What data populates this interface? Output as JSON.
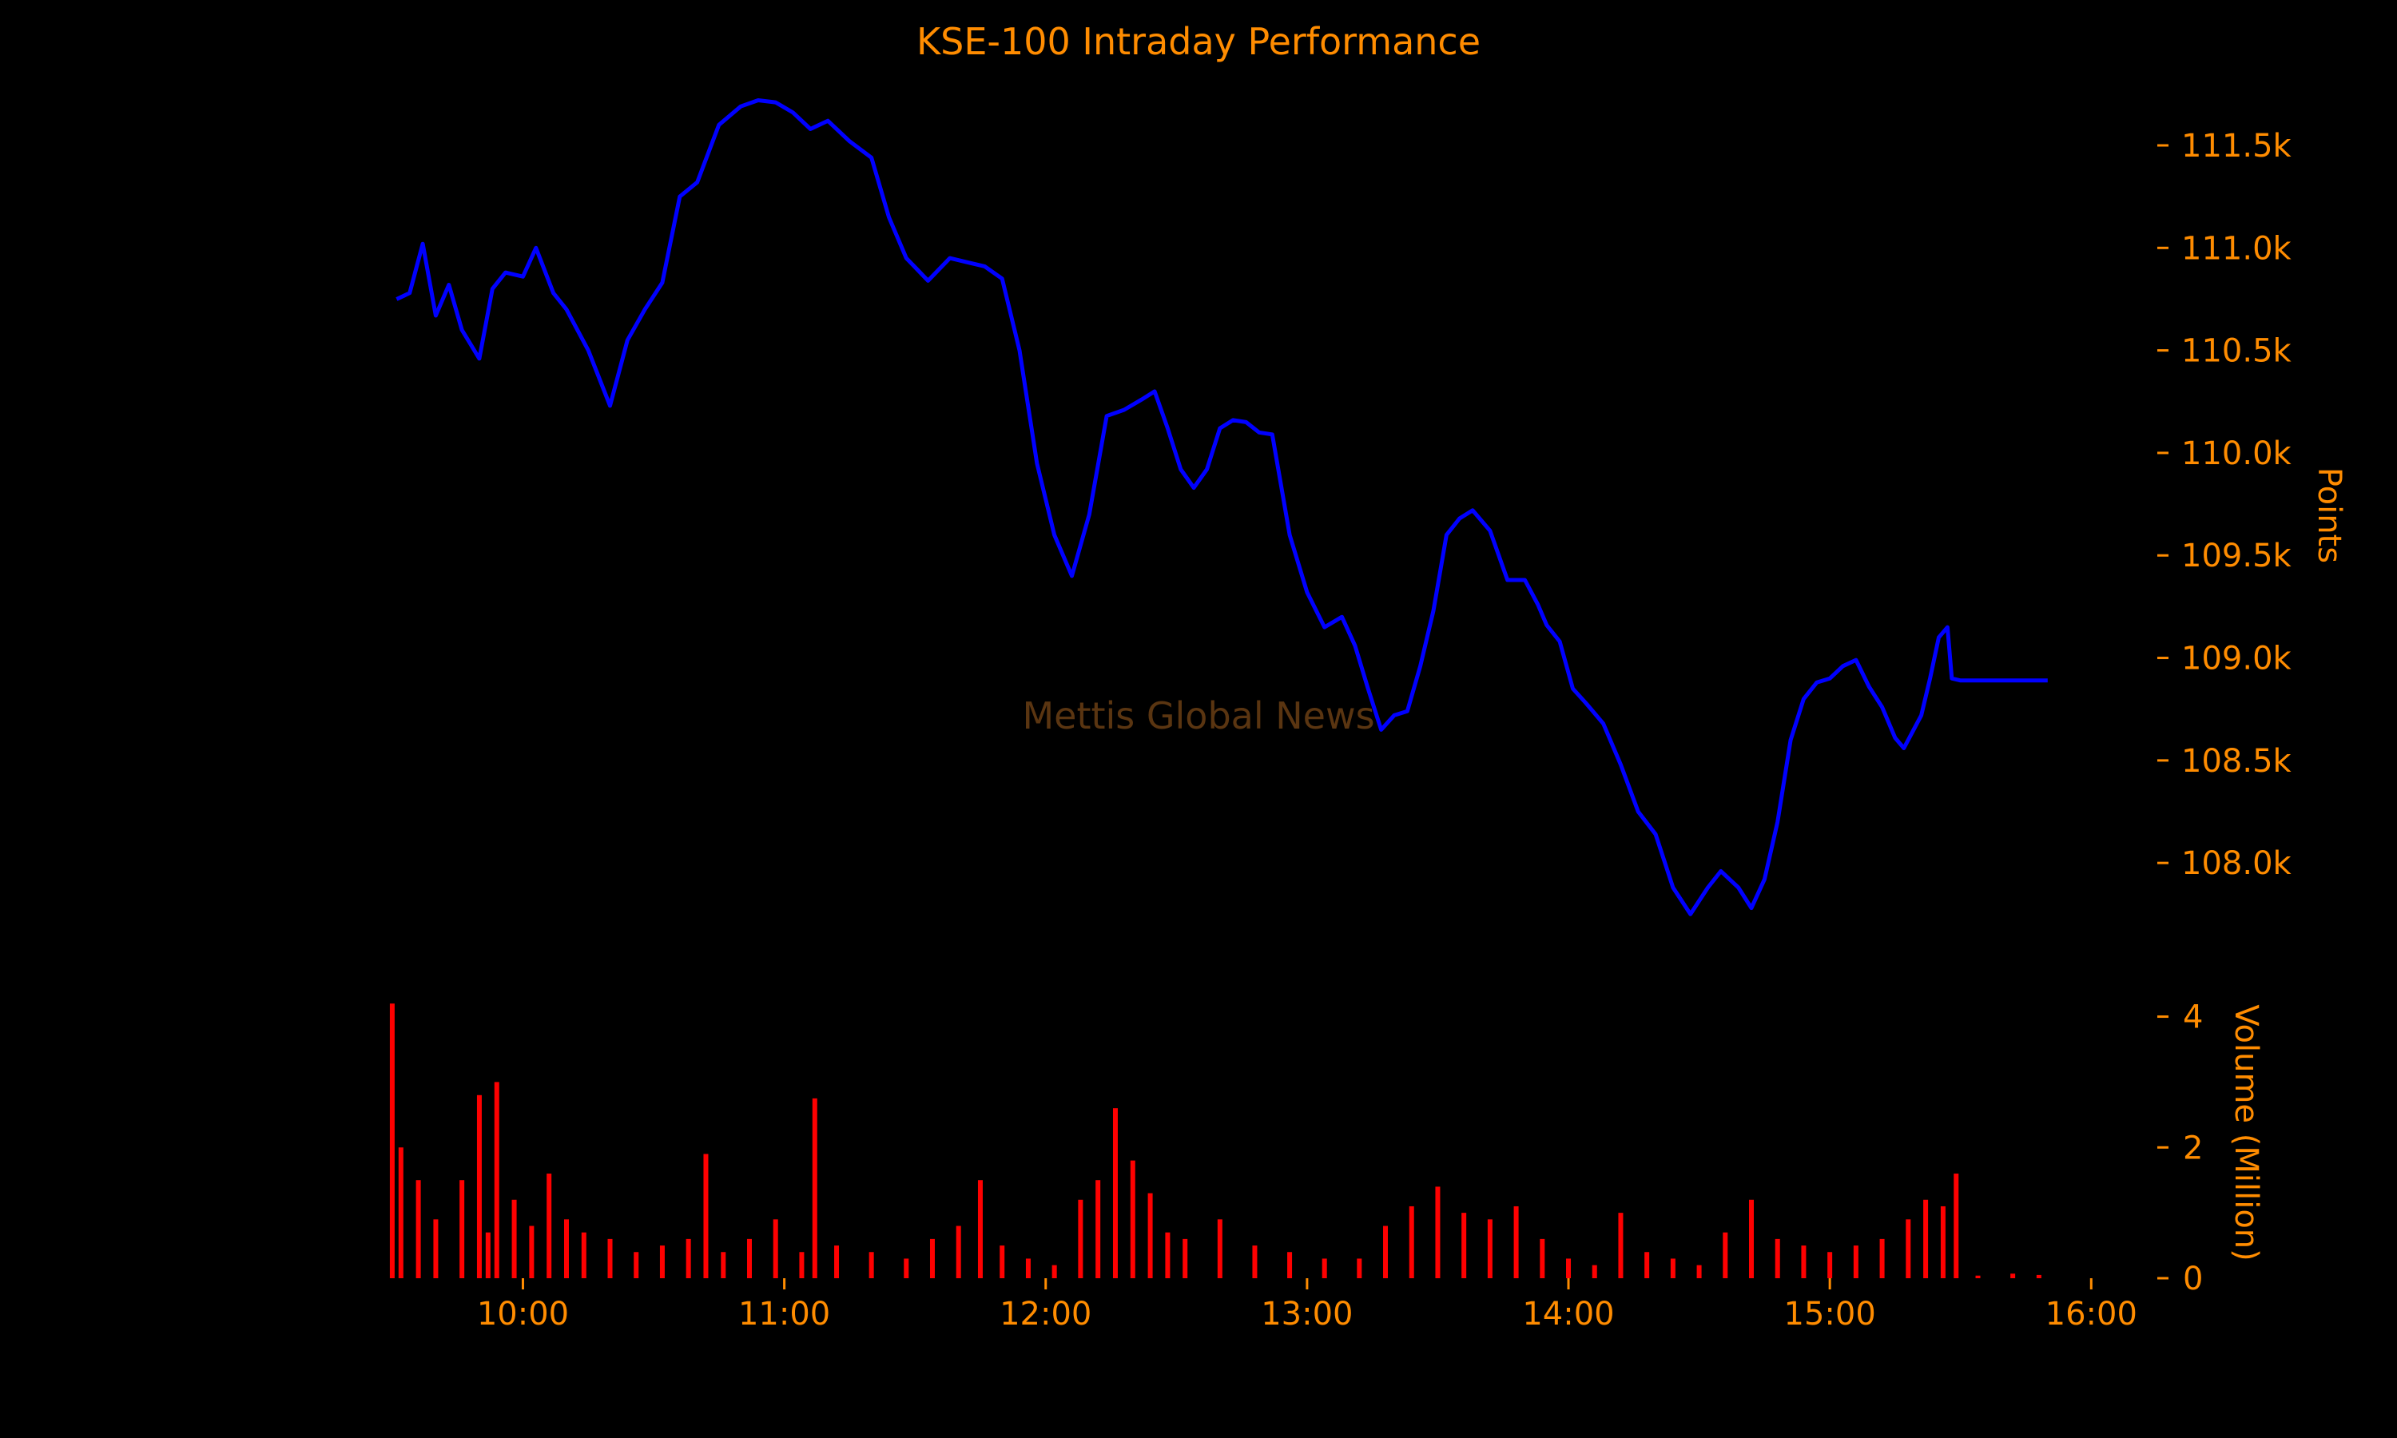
{
  "colors": {
    "background": "#000000",
    "text": "#ff8c00",
    "price_line": "#0000ff",
    "volume_bars": "#ff0000",
    "watermark": "#5a3511"
  },
  "chart_data": [
    {
      "type": "line",
      "title": "KSE-100 Intraday Performance",
      "watermark": "Mettis Global News",
      "ylabel": "Points",
      "y_axis_position": "right",
      "ylim": [
        107650,
        111800
      ],
      "yticks": [
        108000,
        108500,
        109000,
        109500,
        110000,
        110500,
        111000,
        111500
      ],
      "ytick_labels": [
        "108.0k",
        "108.5k",
        "109.0k",
        "109.5k",
        "110.0k",
        "110.5k",
        "111.0k",
        "111.5k"
      ],
      "grid": false,
      "series": [
        {
          "x": [
            "09:31",
            "09:34",
            "09:37",
            "09:40",
            "09:43",
            "09:46",
            "09:50",
            "09:53",
            "09:56",
            "10:00",
            "10:03",
            "10:07",
            "10:10",
            "10:15",
            "10:20",
            "10:24",
            "10:28",
            "10:32",
            "10:36",
            "10:40",
            "10:45",
            "10:50",
            "10:54",
            "10:58",
            "11:02",
            "11:06",
            "11:10",
            "11:15",
            "11:20",
            "11:24",
            "11:28",
            "11:33",
            "11:38",
            "11:42",
            "11:46",
            "11:50",
            "11:54",
            "11:58",
            "12:02",
            "12:06",
            "12:10",
            "12:14",
            "12:18",
            "12:22",
            "12:25",
            "12:28",
            "12:31",
            "12:34",
            "12:37",
            "12:40",
            "12:43",
            "12:46",
            "12:49",
            "12:52",
            "12:56",
            "13:00",
            "13:04",
            "13:08",
            "13:11",
            "13:14",
            "13:17",
            "13:20",
            "13:23",
            "13:26",
            "13:29",
            "13:32",
            "13:35",
            "13:38",
            "13:42",
            "13:46",
            "13:50",
            "13:53",
            "13:55",
            "13:58",
            "14:01",
            "14:04",
            "14:08",
            "14:12",
            "14:16",
            "14:20",
            "14:24",
            "14:28",
            "14:32",
            "14:35",
            "14:37",
            "14:39",
            "14:42",
            "14:45",
            "14:48",
            "14:51",
            "14:54",
            "14:57",
            "15:00",
            "15:03",
            "15:06",
            "15:09",
            "15:12",
            "15:15",
            "15:17",
            "15:19",
            "15:21",
            "15:23",
            "15:25",
            "15:27",
            "15:28",
            "15:30",
            "15:50"
          ],
          "values": [
            110750,
            110780,
            111020,
            110670,
            110820,
            110600,
            110460,
            110800,
            110880,
            110860,
            111000,
            110780,
            110700,
            110500,
            110230,
            110550,
            110700,
            110830,
            111250,
            111320,
            111600,
            111690,
            111720,
            111710,
            111660,
            111580,
            111620,
            111520,
            111440,
            111150,
            110950,
            110840,
            110950,
            110930,
            110910,
            110850,
            110500,
            109950,
            109600,
            109400,
            109700,
            110180,
            110210,
            110260,
            110300,
            110120,
            109920,
            109830,
            109920,
            110120,
            110160,
            110150,
            110100,
            110090,
            109600,
            109320,
            109150,
            109200,
            109060,
            108850,
            108650,
            108720,
            108740,
            108960,
            109230,
            109600,
            109680,
            109720,
            109620,
            109380,
            109380,
            109260,
            109160,
            109080,
            108850,
            108780,
            108680,
            108480,
            108250,
            108140,
            107880,
            107750,
            107880,
            107960,
            107920,
            107880,
            107780,
            107920,
            108200,
            108600,
            108800,
            108880,
            108900,
            108960,
            108990,
            108860,
            108760,
            108610,
            108560,
            108640,
            108720,
            108900,
            109100,
            109150,
            108900,
            108890,
            108890
          ]
        }
      ]
    },
    {
      "type": "bar",
      "ylabel": "Volume (Million)",
      "y_axis_position": "right",
      "ylim": [
        0,
        4.3
      ],
      "yticks": [
        0,
        2,
        4
      ],
      "ytick_labels": [
        "0",
        "2",
        "4"
      ],
      "xlim": [
        "09:28",
        "16:06"
      ],
      "xticks": [
        "10:00",
        "11:00",
        "12:00",
        "13:00",
        "14:00",
        "15:00",
        "16:00"
      ],
      "grid": false,
      "x": [
        "09:30",
        "09:32",
        "09:36",
        "09:40",
        "09:46",
        "09:50",
        "09:52",
        "09:54",
        "09:58",
        "10:02",
        "10:06",
        "10:10",
        "10:14",
        "10:20",
        "10:26",
        "10:32",
        "10:38",
        "10:42",
        "10:46",
        "10:52",
        "10:58",
        "11:04",
        "11:07",
        "11:12",
        "11:20",
        "11:28",
        "11:34",
        "11:40",
        "11:45",
        "11:50",
        "11:56",
        "12:02",
        "12:08",
        "12:12",
        "12:16",
        "12:20",
        "12:24",
        "12:28",
        "12:32",
        "12:40",
        "12:48",
        "12:56",
        "13:04",
        "13:12",
        "13:18",
        "13:24",
        "13:30",
        "13:36",
        "13:42",
        "13:48",
        "13:54",
        "14:00",
        "14:06",
        "14:12",
        "14:18",
        "14:24",
        "14:30",
        "14:36",
        "14:42",
        "14:48",
        "14:54",
        "15:00",
        "15:06",
        "15:12",
        "15:18",
        "15:22",
        "15:26",
        "15:29",
        "15:34",
        "15:42",
        "15:48"
      ],
      "values": [
        4.2,
        2.0,
        1.5,
        0.9,
        1.5,
        2.8,
        0.7,
        3.0,
        1.2,
        0.8,
        1.6,
        0.9,
        0.7,
        0.6,
        0.4,
        0.5,
        0.6,
        1.9,
        0.4,
        0.6,
        0.9,
        0.4,
        2.75,
        0.5,
        0.4,
        0.3,
        0.6,
        0.8,
        1.5,
        0.5,
        0.3,
        0.2,
        1.2,
        1.5,
        2.6,
        1.8,
        1.3,
        0.7,
        0.6,
        0.9,
        0.5,
        0.4,
        0.3,
        0.3,
        0.8,
        1.1,
        1.4,
        1.0,
        0.9,
        1.1,
        0.6,
        0.3,
        0.2,
        1.0,
        0.4,
        0.3,
        0.2,
        0.7,
        1.2,
        0.6,
        0.5,
        0.4,
        0.5,
        0.6,
        0.9,
        1.2,
        1.1,
        1.6,
        0.04,
        0.07,
        0.05
      ]
    }
  ]
}
